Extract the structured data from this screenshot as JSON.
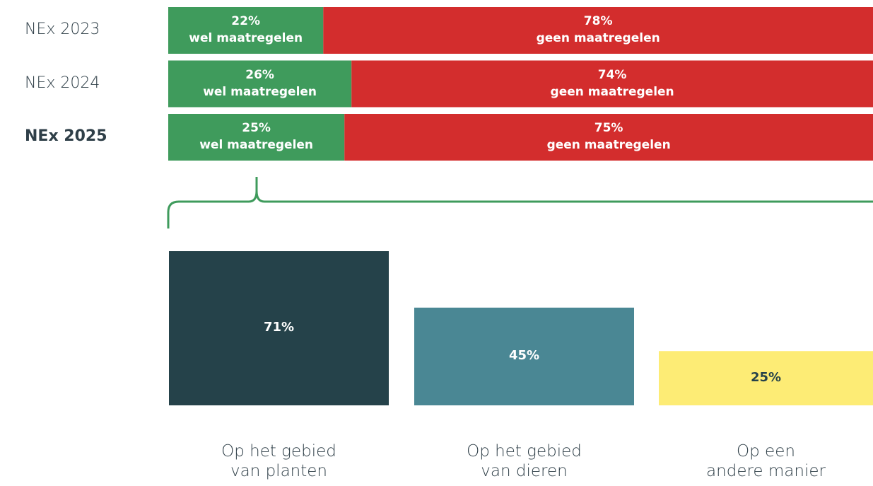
{
  "chart_data": [
    {
      "type": "stacked-bar-horizontal",
      "categories": [
        "NEx 2023",
        "NEx 2024",
        "NEx 2025"
      ],
      "xlim": [
        0,
        100
      ],
      "series": [
        {
          "name": "wel maatregelen",
          "color": "#3f9b5c",
          "values": [
            22,
            26,
            25
          ],
          "value_labels": [
            "22%",
            "26%",
            "25%"
          ]
        },
        {
          "name": "geen maatregelen",
          "color": "#d32d2d",
          "values": [
            78,
            74,
            75
          ],
          "value_labels": [
            "78%",
            "74%",
            "75%"
          ]
        }
      ]
    },
    {
      "type": "bar",
      "categories": [
        "Op het gebied\nvan planten",
        "Op het gebied\nvan dieren",
        "Op een\nandere manier"
      ],
      "values": [
        71,
        45,
        25
      ],
      "value_labels": [
        "71%",
        "45%",
        "25%"
      ],
      "colors": [
        "#25424a",
        "#4a8794",
        "#fdec75"
      ],
      "ylim": [
        0,
        100
      ]
    }
  ]
}
